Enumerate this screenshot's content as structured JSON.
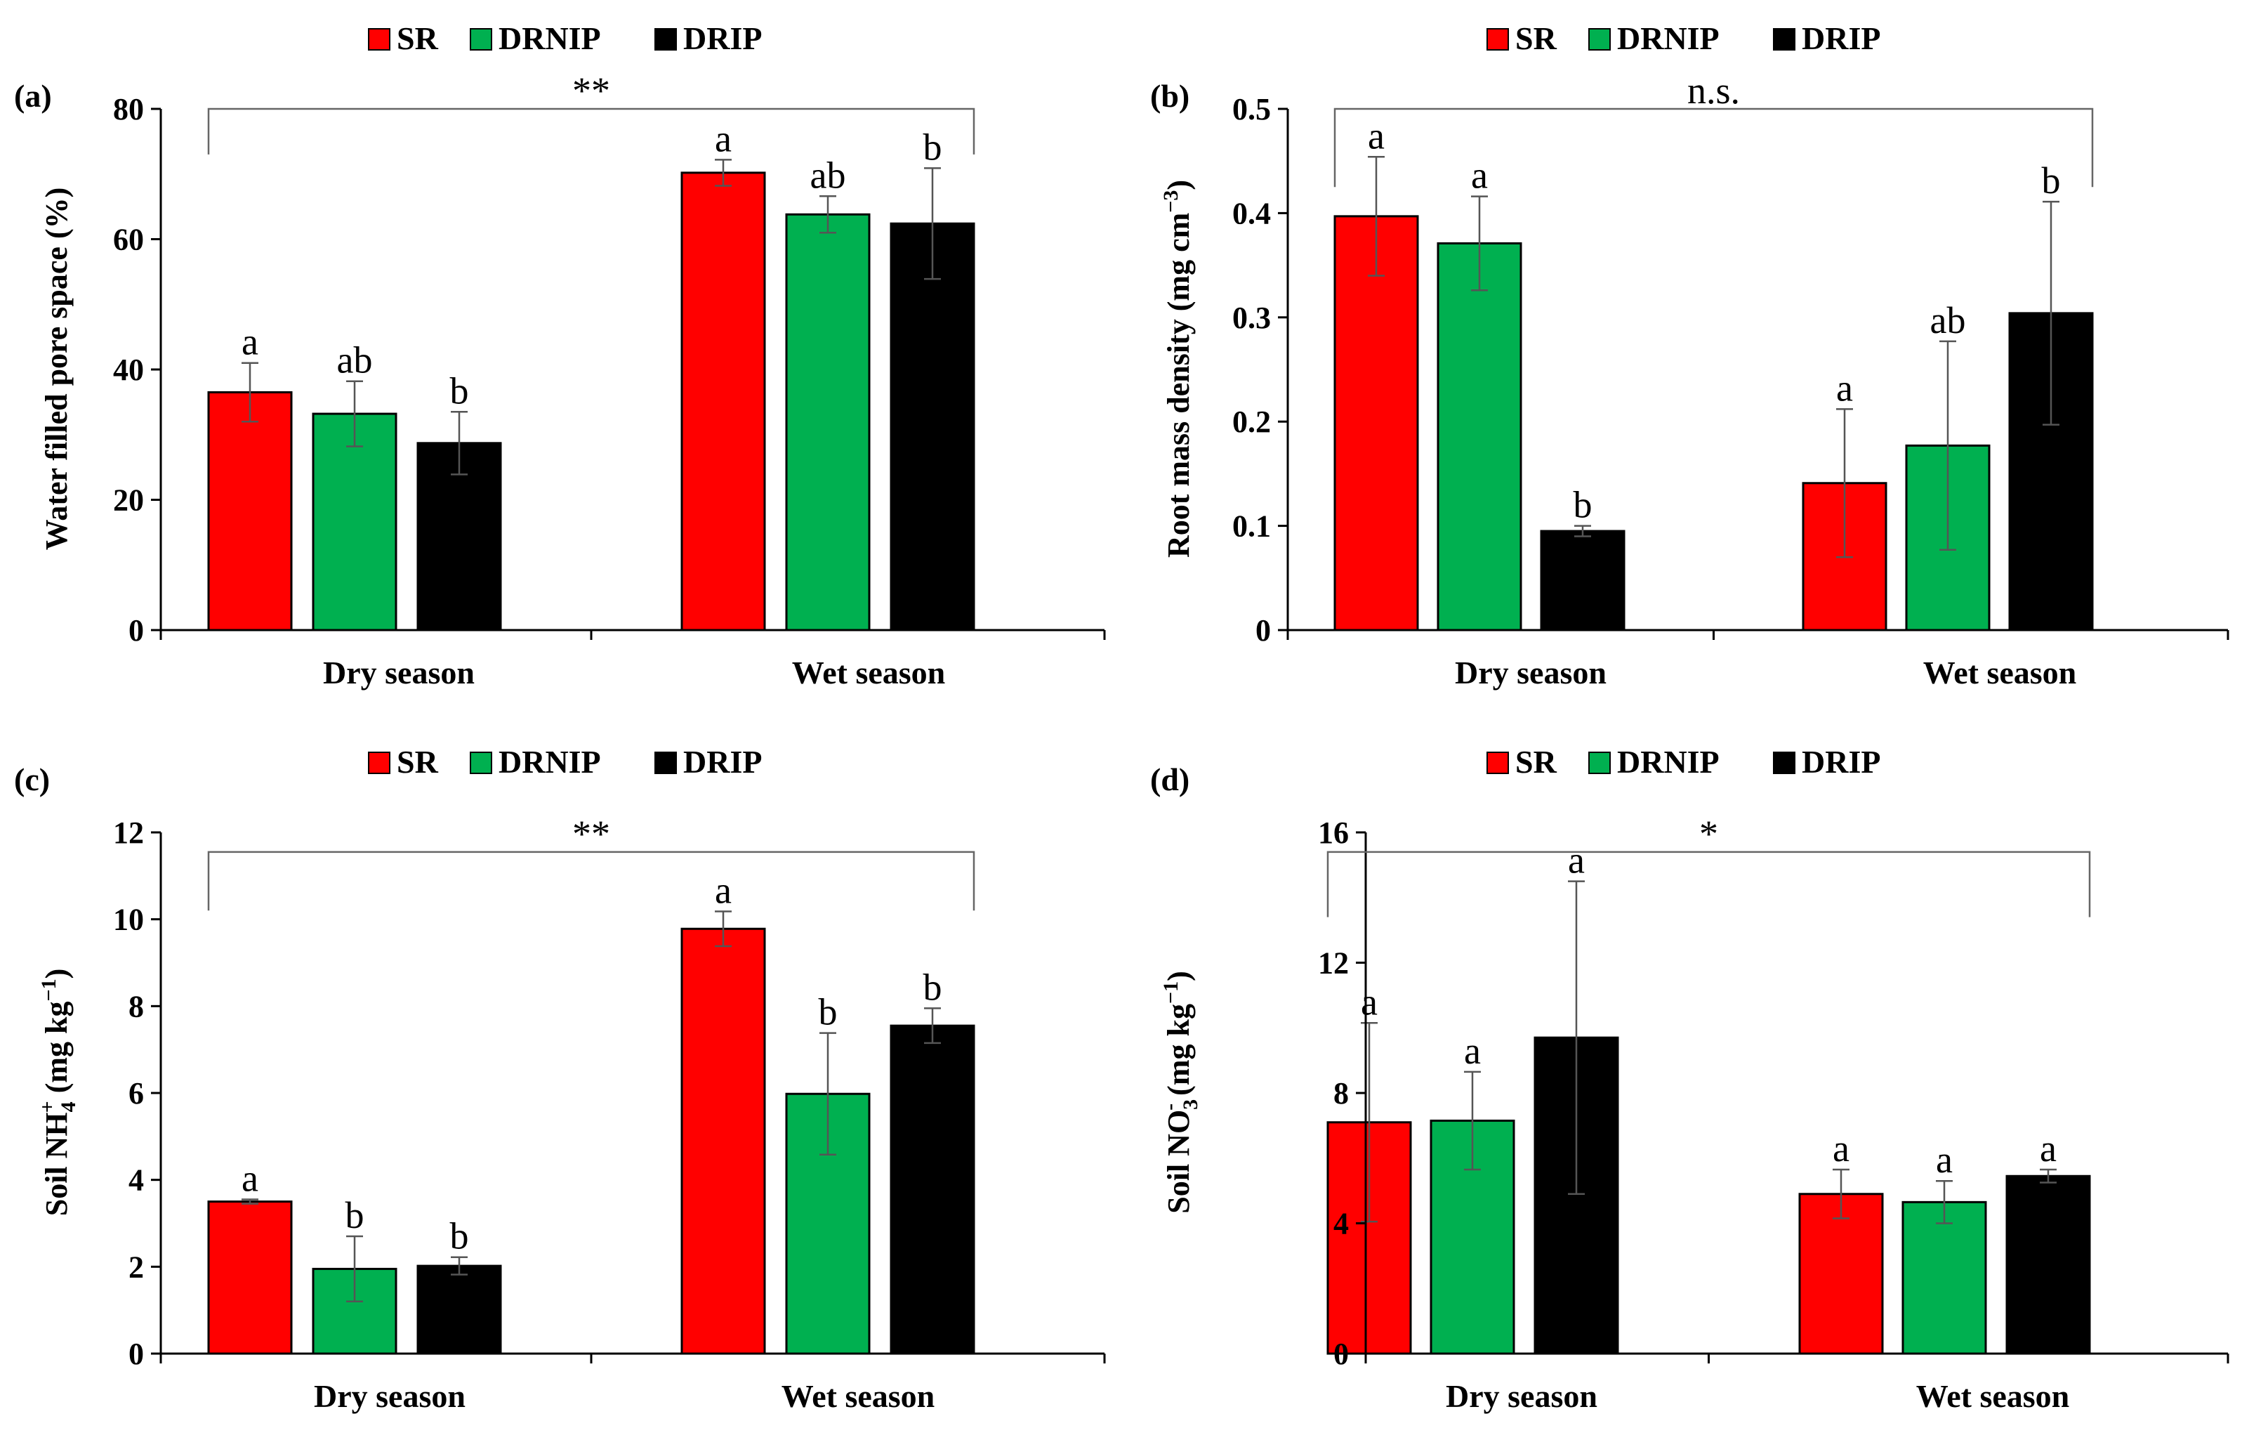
{
  "legend": {
    "entries": [
      {
        "name": "SR",
        "color": "#ff0000"
      },
      {
        "name": "DRNIP",
        "color": "#00b050"
      },
      {
        "name": "DRIP",
        "color": "#000000"
      }
    ]
  },
  "chart_data": [
    {
      "panel": "(a)",
      "type": "bar",
      "categories": [
        "Dry season",
        "Wet season"
      ],
      "series": [
        {
          "name": "SR",
          "values": [
            36.5,
            70.2
          ],
          "errors": [
            4.5,
            2.0
          ],
          "letters": [
            "a",
            "a"
          ]
        },
        {
          "name": "DRNIP",
          "values": [
            33.2,
            63.8
          ],
          "errors": [
            5.0,
            2.8
          ],
          "letters": [
            "ab",
            "ab"
          ]
        },
        {
          "name": "DRIP",
          "values": [
            28.7,
            62.4
          ],
          "errors": [
            4.8,
            8.5
          ],
          "letters": [
            "b",
            "b"
          ]
        }
      ],
      "ylabel": "Water filled pore space (%)",
      "ylim": [
        0,
        80
      ],
      "yticks": [
        0,
        20,
        40,
        60,
        80
      ],
      "ytick_labels": [
        "0",
        "20",
        "40",
        "60",
        "80"
      ],
      "significance": "**",
      "bracket_y": 80,
      "bracket_drop": 73
    },
    {
      "panel": "(b)",
      "type": "bar",
      "categories": [
        "Dry season",
        "Wet season"
      ],
      "series": [
        {
          "name": "SR",
          "values": [
            0.397,
            0.141
          ],
          "errors": [
            0.057,
            0.071
          ],
          "letters": [
            "a",
            "a"
          ]
        },
        {
          "name": "DRNIP",
          "values": [
            0.371,
            0.177
          ],
          "errors": [
            0.045,
            0.1
          ],
          "letters": [
            "a",
            "ab"
          ]
        },
        {
          "name": "DRIP",
          "values": [
            0.095,
            0.304
          ],
          "errors": [
            0.005,
            0.107
          ],
          "letters": [
            "b",
            "b"
          ]
        }
      ],
      "ylabel": "Root mass density (mg cm",
      "ylabel_sup": "−3",
      "ylabel_end": ")",
      "ylim": [
        0,
        0.5
      ],
      "yticks": [
        0,
        0.1,
        0.2,
        0.3,
        0.4,
        0.5
      ],
      "ytick_labels": [
        "0",
        "0.1",
        "0.2",
        "0.3",
        "0.4",
        "0.5"
      ],
      "significance": "n.s.",
      "bracket_y": 0.5,
      "bracket_drop": 0.425
    },
    {
      "panel": "(c)",
      "type": "bar",
      "categories": [
        "Dry season",
        "Wet season"
      ],
      "series": [
        {
          "name": "SR",
          "values": [
            3.5,
            9.78
          ],
          "errors": [
            0.05,
            0.4
          ],
          "letters": [
            "a",
            "a"
          ]
        },
        {
          "name": "DRNIP",
          "values": [
            1.95,
            5.98
          ],
          "errors": [
            0.75,
            1.4
          ],
          "letters": [
            "b",
            "b"
          ]
        },
        {
          "name": "DRIP",
          "values": [
            2.02,
            7.55
          ],
          "errors": [
            0.2,
            0.4
          ],
          "letters": [
            "b",
            "b"
          ]
        }
      ],
      "ylabel": "Soil NH",
      "ylabel_sub": "4",
      "ylabel_sup": "+",
      "ylabel_end": " (mg kg",
      "ylabel_sup2": "−1",
      "ylabel_end2": ")",
      "ylim": [
        0,
        12
      ],
      "yticks": [
        0,
        2,
        4,
        6,
        8,
        10,
        12
      ],
      "ytick_labels": [
        "0",
        "2",
        "4",
        "6",
        "8",
        "10",
        "12"
      ],
      "significance": "**",
      "bracket_y": 11.55,
      "bracket_drop": 10.2
    },
    {
      "panel": "(d)",
      "type": "bar",
      "categories": [
        "Dry season",
        "Wet season"
      ],
      "series": [
        {
          "name": "SR",
          "values": [
            7.1,
            4.9
          ],
          "errors": [
            3.05,
            0.75
          ],
          "letters": [
            "a",
            "a"
          ]
        },
        {
          "name": "DRNIP",
          "values": [
            7.15,
            4.65
          ],
          "errors": [
            1.5,
            0.65
          ],
          "letters": [
            "a",
            "a"
          ]
        },
        {
          "name": "DRIP",
          "values": [
            9.7,
            5.45
          ],
          "errors": [
            4.8,
            0.2
          ],
          "letters": [
            "a",
            "a"
          ]
        }
      ],
      "ylabel": "Soil NO",
      "ylabel_sub": "3",
      "ylabel_sup": "-",
      "ylabel_end": " (mg kg",
      "ylabel_sup2": "−1",
      "ylabel_end2": ")",
      "ylim": [
        0,
        16
      ],
      "yticks": [
        0,
        4,
        8,
        12,
        16
      ],
      "ytick_labels": [
        "0",
        "4",
        "8",
        "12",
        "16"
      ],
      "significance": "*",
      "bracket_y": 15.4,
      "bracket_drop": 13.4
    }
  ]
}
